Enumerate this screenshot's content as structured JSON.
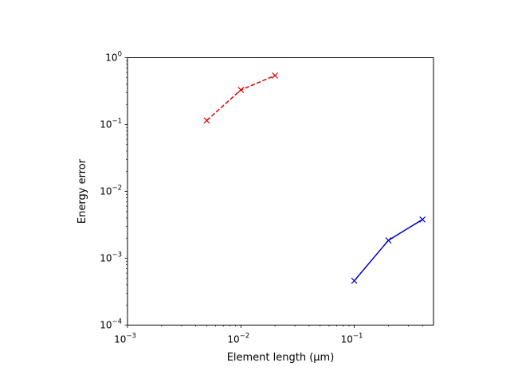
{
  "chart_data": {
    "type": "line",
    "xlabel": "Element length (µm)",
    "ylabel": "Energy error",
    "xscale": "log",
    "yscale": "log",
    "xlim": [
      0.001,
      0.5
    ],
    "ylim": [
      0.0001,
      1
    ],
    "grid": false,
    "x_ticks": [
      {
        "value": 0.001,
        "base": "10",
        "exp": "−3"
      },
      {
        "value": 0.01,
        "base": "10",
        "exp": "−2"
      },
      {
        "value": 0.1,
        "base": "10",
        "exp": "−1"
      }
    ],
    "y_ticks": [
      {
        "value": 0.0001,
        "base": "10",
        "exp": "−4"
      },
      {
        "value": 0.001,
        "base": "10",
        "exp": "−3"
      },
      {
        "value": 0.01,
        "base": "10",
        "exp": "−2"
      },
      {
        "value": 0.1,
        "base": "10",
        "exp": "−1"
      },
      {
        "value": 1,
        "base": "10",
        "exp": "0"
      }
    ],
    "series": [
      {
        "color": "#dd0000",
        "line_style": "dashed",
        "marker": "x",
        "x": [
          0.005,
          0.01,
          0.02
        ],
        "y": [
          0.115,
          0.33,
          0.54
        ]
      },
      {
        "color": "#0000cc",
        "line_style": "solid",
        "marker": "x",
        "x": [
          0.1,
          0.2,
          0.4
        ],
        "y": [
          0.00046,
          0.00185,
          0.0038
        ]
      }
    ]
  }
}
